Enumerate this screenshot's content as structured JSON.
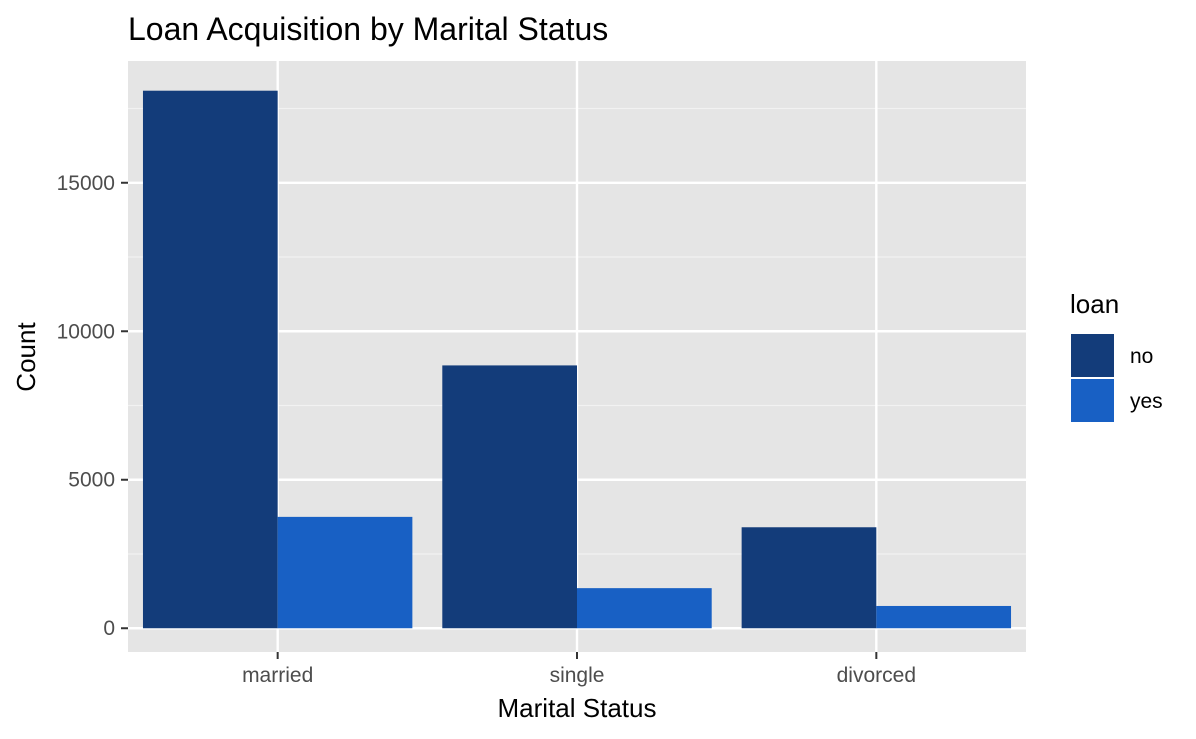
{
  "chart_data": {
    "type": "bar",
    "title": "Loan Acquisition by Marital Status",
    "xlabel": "Marital Status",
    "ylabel": "Count",
    "categories": [
      "married",
      "single",
      "divorced"
    ],
    "series": [
      {
        "name": "no",
        "color": "#133C7A",
        "values": [
          18100,
          8850,
          3400
        ]
      },
      {
        "name": "yes",
        "color": "#1860C4",
        "values": [
          3750,
          1350,
          750
        ]
      }
    ],
    "ylim": [
      -800,
      19100
    ],
    "yticks": [
      0,
      5000,
      10000,
      15000
    ],
    "grid": true,
    "legend": {
      "title": "loan",
      "position": "right"
    },
    "panel_color": "#E5E5E5"
  }
}
